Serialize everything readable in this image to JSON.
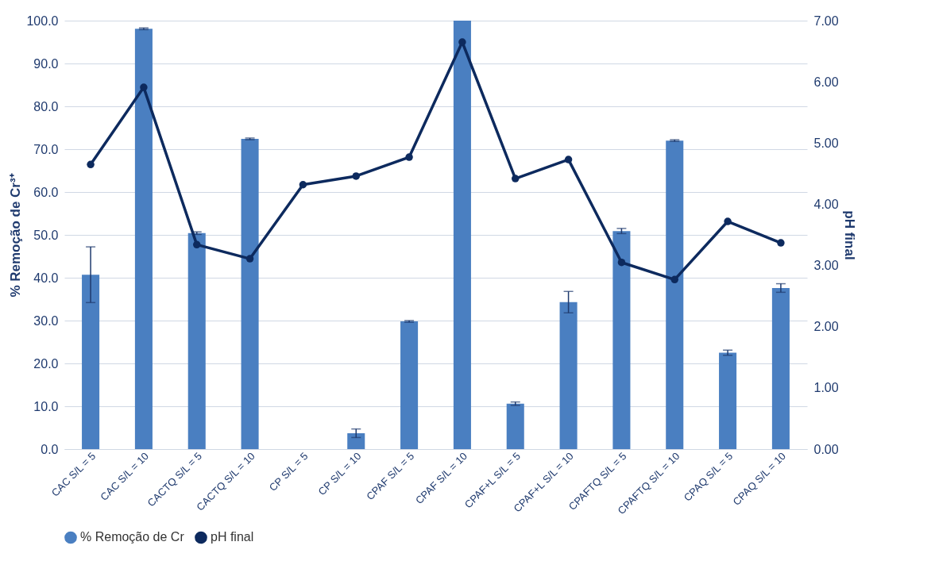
{
  "chart_data": {
    "type": "bar",
    "ylabel": "% Remoção de  Cr³⁺",
    "y2label": "pH final",
    "categories": [
      "CAC S/L = 5",
      "CAC S/L = 10",
      "CACTQ S/L = 5",
      "CACTQ S/L = 10",
      "CP S/L = 5",
      "CP S/L = 10",
      "CPAF S/L = 5",
      "CPAF S/L = 10",
      "CPAF+L S/L = 5",
      "CPAF+L S/L = 10",
      "CPAFTQ S/L = 5",
      "CPAFTQ S/L = 10",
      "CPAQ S/L = 5",
      "CPAQ S/L = 10"
    ],
    "series": [
      {
        "name": "% Remoção de Cr",
        "color": "#4a7fc1",
        "values": [
          40.7,
          98.1,
          50.4,
          72.4,
          null,
          3.7,
          29.8,
          100,
          10.6,
          34.3,
          50.9,
          72.0,
          22.5,
          37.6
        ],
        "errors": [
          6.5,
          0.2,
          0.3,
          0.2,
          null,
          1.0,
          0.2,
          null,
          0.4,
          2.5,
          0.6,
          0.2,
          0.6,
          1.0
        ]
      },
      {
        "name": "pH final",
        "type": "line",
        "axis": "y2",
        "color": "#0d2a5e",
        "values": [
          4.65,
          5.91,
          3.34,
          3.11,
          4.32,
          4.46,
          4.77,
          6.65,
          4.42,
          4.73,
          3.05,
          2.77,
          3.72,
          3.37
        ]
      }
    ],
    "ylim": [
      0,
      100
    ],
    "yticks": [
      {
        "value": 0,
        "label": "0.0"
      },
      {
        "value": 10,
        "label": "10.0"
      },
      {
        "value": 20,
        "label": "20.0"
      },
      {
        "value": 30,
        "label": "30.0"
      },
      {
        "value": 40,
        "label": "40.0"
      },
      {
        "value": 50,
        "label": "50.0"
      },
      {
        "value": 60,
        "label": "60.0"
      },
      {
        "value": 70,
        "label": "70.0"
      },
      {
        "value": 80,
        "label": "80.0"
      },
      {
        "value": 90,
        "label": "90.0"
      },
      {
        "value": 100,
        "label": "100.0"
      }
    ],
    "y2lim": [
      0,
      7
    ],
    "y2ticks": [
      {
        "value": 0,
        "label": "0.00"
      },
      {
        "value": 1,
        "label": "1.00"
      },
      {
        "value": 2,
        "label": "2.00"
      },
      {
        "value": 3,
        "label": "3.00"
      },
      {
        "value": 4,
        "label": "4.00"
      },
      {
        "value": 5,
        "label": "5.00"
      },
      {
        "value": 6,
        "label": "6.00"
      },
      {
        "value": 7,
        "label": "7.00"
      }
    ],
    "grid": "y",
    "legend": "bottom",
    "marker": "circle",
    "line_style": "solid"
  }
}
